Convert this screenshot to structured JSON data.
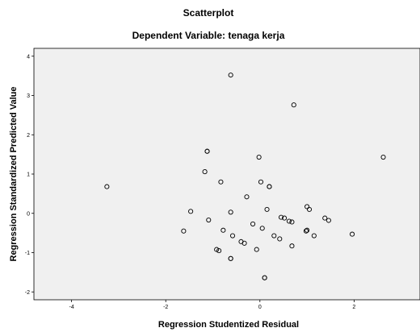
{
  "chart_data": {
    "type": "scatter",
    "title": "Scatterplot",
    "subtitle": "Dependent Variable: tenaga kerja",
    "xlabel": "Regression Studentized Residual",
    "ylabel": "Regression Standardized Predicted Value",
    "xlim": [
      -4.8,
      3.4
    ],
    "ylim": [
      -2.2,
      4.2
    ],
    "xticks": [
      -4,
      -2,
      0,
      2
    ],
    "yticks": [
      -2,
      -1,
      0,
      1,
      2,
      3,
      4
    ],
    "colors": {
      "plot_background": "#f0f0f0",
      "marker": "#000000",
      "frame": "#000000"
    },
    "grid": false,
    "points": [
      {
        "x": -3.25,
        "y": 0.68
      },
      {
        "x": -1.62,
        "y": -0.45
      },
      {
        "x": -1.47,
        "y": 0.05
      },
      {
        "x": -1.17,
        "y": 1.06
      },
      {
        "x": -1.12,
        "y": 1.58
      },
      {
        "x": -1.12,
        "y": 1.58
      },
      {
        "x": -1.09,
        "y": -0.17
      },
      {
        "x": -0.92,
        "y": -0.92
      },
      {
        "x": -0.87,
        "y": -0.95
      },
      {
        "x": -0.83,
        "y": 0.8
      },
      {
        "x": -0.78,
        "y": -0.43
      },
      {
        "x": -0.62,
        "y": 3.52
      },
      {
        "x": -0.62,
        "y": 0.03
      },
      {
        "x": -0.62,
        "y": -1.15
      },
      {
        "x": -0.62,
        "y": -1.15
      },
      {
        "x": -0.58,
        "y": -0.57
      },
      {
        "x": -0.4,
        "y": -0.72
      },
      {
        "x": -0.33,
        "y": -0.76
      },
      {
        "x": -0.28,
        "y": 0.42
      },
      {
        "x": -0.15,
        "y": -0.27
      },
      {
        "x": -0.07,
        "y": -0.92
      },
      {
        "x": -0.02,
        "y": 1.43
      },
      {
        "x": 0.02,
        "y": 0.8
      },
      {
        "x": 0.05,
        "y": -0.38
      },
      {
        "x": 0.1,
        "y": -1.64
      },
      {
        "x": 0.1,
        "y": -1.64
      },
      {
        "x": 0.15,
        "y": 0.1
      },
      {
        "x": 0.2,
        "y": 0.68
      },
      {
        "x": 0.2,
        "y": 0.68
      },
      {
        "x": 0.3,
        "y": -0.57
      },
      {
        "x": 0.42,
        "y": -0.65
      },
      {
        "x": 0.45,
        "y": -0.1
      },
      {
        "x": 0.52,
        "y": -0.12
      },
      {
        "x": 0.62,
        "y": -0.2
      },
      {
        "x": 0.68,
        "y": -0.22
      },
      {
        "x": 0.68,
        "y": -0.83
      },
      {
        "x": 0.72,
        "y": 2.76
      },
      {
        "x": 0.98,
        "y": -0.45
      },
      {
        "x": 1.0,
        "y": -0.43
      },
      {
        "x": 1.0,
        "y": 0.17
      },
      {
        "x": 1.05,
        "y": 0.1
      },
      {
        "x": 1.15,
        "y": -0.57
      },
      {
        "x": 1.38,
        "y": -0.12
      },
      {
        "x": 1.46,
        "y": -0.18
      },
      {
        "x": 1.96,
        "y": -0.53
      },
      {
        "x": 2.62,
        "y": 1.43
      }
    ]
  }
}
